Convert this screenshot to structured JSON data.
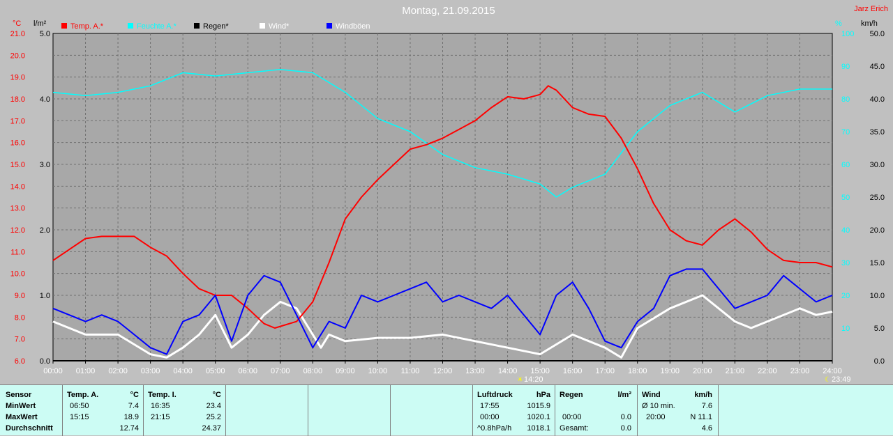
{
  "title": "Montag, 21.09.2015",
  "author": "Jarz Erich",
  "axes": {
    "temp_unit": "°C",
    "rain_unit": "l/m²",
    "hum_unit": "%",
    "wind_unit": "km/h",
    "temp_ticks": [
      "21.0",
      "20.0",
      "19.0",
      "18.0",
      "17.0",
      "16.0",
      "15.0",
      "14.0",
      "13.0",
      "12.0",
      "11.0",
      "10.0",
      "9.0",
      "8.0",
      "7.0",
      "6.0"
    ],
    "rain_ticks": [
      "5.0",
      "4.0",
      "3.0",
      "2.0",
      "1.0",
      "0.0"
    ],
    "hum_ticks": [
      "100",
      "90",
      "80",
      "70",
      "60",
      "50",
      "40",
      "30",
      "20",
      "10"
    ],
    "wind_ticks": [
      "50.0",
      "45.0",
      "40.0",
      "35.0",
      "30.0",
      "25.0",
      "20.0",
      "15.0",
      "10.0",
      "5.0",
      "0.0"
    ],
    "time_ticks": [
      "00:00",
      "01:00",
      "02:00",
      "03:00",
      "04:00",
      "05:00",
      "06:00",
      "07:00",
      "08:00",
      "09:00",
      "10:00",
      "11:00",
      "12:00",
      "13:00",
      "14:00",
      "15:00",
      "16:00",
      "17:00",
      "18:00",
      "19:00",
      "20:00",
      "21:00",
      "22:00",
      "23:00",
      "24:00"
    ],
    "sunrise": "14:20",
    "sunset": "23:49"
  },
  "legend": [
    {
      "label": "Temp. A.*",
      "color": "#ff0000"
    },
    {
      "label": "Feuchte A.*",
      "color": "#00ffff"
    },
    {
      "label": "Regen*",
      "color": "#000000"
    },
    {
      "label": "Wind*",
      "color": "#ffffff"
    },
    {
      "label": "Windböen",
      "color": "#0000ff"
    }
  ],
  "chart_data": {
    "type": "line",
    "x_unit": "hours",
    "xlim": [
      0,
      24
    ],
    "series": [
      {
        "name": "Temp. A.*",
        "axis": "temp",
        "ylim": [
          6,
          21
        ],
        "color": "#ff0000",
        "x": [
          0,
          0.5,
          1,
          1.5,
          2,
          2.5,
          3,
          3.5,
          4,
          4.5,
          5,
          5.5,
          6,
          6.5,
          6.83,
          7.5,
          8,
          8.5,
          9,
          9.5,
          10,
          10.5,
          11,
          11.5,
          12,
          12.5,
          13,
          13.5,
          14,
          14.5,
          15,
          15.25,
          15.5,
          16,
          16.5,
          17,
          17.5,
          18,
          18.5,
          19,
          19.5,
          20,
          20.5,
          21,
          21.5,
          22,
          22.5,
          23,
          23.5,
          24
        ],
        "y": [
          10.6,
          11.1,
          11.6,
          11.7,
          11.7,
          11.7,
          11.2,
          10.8,
          10.0,
          9.3,
          9.0,
          9.0,
          8.4,
          7.7,
          7.5,
          7.8,
          8.7,
          10.5,
          12.5,
          13.5,
          14.3,
          15.0,
          15.7,
          15.9,
          16.2,
          16.6,
          17.0,
          17.6,
          18.1,
          18.0,
          18.2,
          18.6,
          18.4,
          17.6,
          17.3,
          17.2,
          16.2,
          14.8,
          13.2,
          12.0,
          11.5,
          11.3,
          12.0,
          12.5,
          11.9,
          11.1,
          10.6,
          10.5,
          10.5,
          10.3
        ]
      },
      {
        "name": "Feuchte A.*",
        "axis": "hum",
        "ylim": [
          0,
          100
        ],
        "color": "#00ffff",
        "x": [
          0,
          1,
          2,
          3,
          4,
          5,
          6,
          7,
          8,
          9,
          10,
          11,
          12,
          13,
          14,
          15,
          15.5,
          16,
          17,
          18,
          19,
          20,
          21,
          22,
          23,
          24
        ],
        "y": [
          82,
          81,
          82,
          84,
          88,
          87,
          88,
          89,
          88,
          82,
          74,
          70,
          63,
          59,
          57,
          54,
          50,
          53,
          57,
          70,
          78,
          82,
          76,
          81,
          83,
          83
        ]
      },
      {
        "name": "Wind*",
        "axis": "wind",
        "ylim": [
          0,
          50
        ],
        "color": "#ffffff",
        "x": [
          0,
          1,
          2,
          3,
          3.5,
          4,
          4.5,
          5,
          5.5,
          6,
          6.5,
          7,
          7.5,
          8,
          8.25,
          8.5,
          9,
          10,
          11,
          12,
          13,
          14,
          15,
          16,
          17,
          17.5,
          18,
          19,
          20,
          21,
          21.5,
          22,
          23,
          23.5,
          24
        ],
        "y": [
          6,
          4,
          4,
          1,
          0.5,
          2,
          4,
          7,
          2,
          4,
          7,
          9,
          8,
          4,
          2,
          4,
          3,
          3.5,
          3.5,
          4,
          3,
          2,
          1,
          4,
          2,
          0.5,
          5,
          8,
          10,
          6,
          5,
          6,
          8,
          7,
          7.5
        ]
      },
      {
        "name": "Windböen",
        "axis": "wind",
        "ylim": [
          0,
          50
        ],
        "color": "#0000ff",
        "x": [
          0,
          0.5,
          1,
          1.5,
          2,
          2.5,
          3,
          3.5,
          4,
          4.5,
          5,
          5.5,
          6,
          6.5,
          7,
          7.5,
          8,
          8.5,
          9,
          9.5,
          10,
          10.5,
          11,
          11.5,
          12,
          12.5,
          13,
          13.5,
          14,
          14.5,
          15,
          15.5,
          16,
          16.5,
          17,
          17.5,
          18,
          18.5,
          19,
          19.5,
          20,
          20.5,
          21,
          21.5,
          22,
          22.5,
          23,
          23.5,
          24
        ],
        "y": [
          8,
          7,
          6,
          7,
          6,
          4,
          2,
          1,
          6,
          7,
          10,
          3,
          10,
          13,
          12,
          7,
          2,
          6,
          5,
          10,
          9,
          10,
          11,
          12,
          9,
          10,
          9,
          8,
          10,
          7,
          4,
          10,
          12,
          8,
          3,
          2,
          6,
          8,
          13,
          14,
          14,
          11,
          8,
          9,
          10,
          13,
          11,
          9,
          10
        ]
      },
      {
        "name": "Regen*",
        "axis": "rain",
        "ylim": [
          0,
          5
        ],
        "color": "#000000",
        "x": [
          0,
          24
        ],
        "y": [
          0,
          0
        ]
      }
    ]
  },
  "stats": {
    "sensor": {
      "header": "Sensor",
      "rows": [
        "MinWert",
        "MaxWert",
        "Durchschnitt"
      ]
    },
    "temp_a": {
      "header": "Temp. A.",
      "unit": "°C",
      "rows": [
        {
          "time": "06:50",
          "value": "7.4"
        },
        {
          "time": "15:15",
          "value": "18.9"
        },
        {
          "time": "",
          "value": "12.74"
        }
      ]
    },
    "temp_i": {
      "header": "Temp. I.",
      "unit": "°C",
      "rows": [
        {
          "time": "16:35",
          "value": "23.4"
        },
        {
          "time": "21:15",
          "value": "25.2"
        },
        {
          "time": "",
          "value": "24.37"
        }
      ]
    },
    "pressure": {
      "header": "Luftdruck",
      "unit": "hPa",
      "rows": [
        {
          "time": "17:55",
          "value": "1015.9"
        },
        {
          "time": "00:00",
          "value": "1020.1"
        },
        {
          "time": "^0.8hPa/h",
          "value": "1018.1"
        }
      ]
    },
    "rain": {
      "header": "Regen",
      "unit": "l/m²",
      "rows": [
        {
          "time": "",
          "value": ""
        },
        {
          "time": "00:00",
          "value": "0.0"
        },
        {
          "time": "Gesamt:",
          "value": "0.0"
        }
      ]
    },
    "wind": {
      "header": "Wind",
      "unit": "km/h",
      "rows": [
        {
          "time": "Ø 10 min.",
          "value": "7.6"
        },
        {
          "time": "20:00",
          "value": "N 11.1"
        },
        {
          "time": "",
          "value": "4.6"
        }
      ]
    }
  }
}
